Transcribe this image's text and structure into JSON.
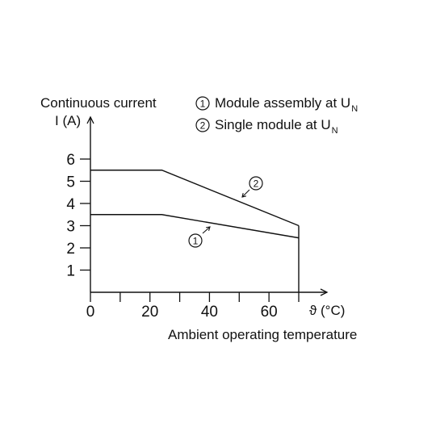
{
  "chart_data": {
    "type": "line",
    "ylabel_line1": "Continuous current",
    "ylabel_line2": "I (A)",
    "xlabel": "Ambient operating temperature",
    "x_axis_symbol": "ϑ (°C)",
    "xlim": [
      0,
      70
    ],
    "ylim": [
      0,
      6
    ],
    "x_ticks": [
      0,
      20,
      40,
      60
    ],
    "y_ticks": [
      1,
      2,
      3,
      4,
      5,
      6
    ],
    "x_minor_ticks": [
      10,
      30,
      50,
      70
    ],
    "legend": [
      {
        "marker": "1",
        "text": "Module assembly at U",
        "subscript": "N"
      },
      {
        "marker": "2",
        "text": "Single module at U",
        "subscript": "N"
      }
    ],
    "series": [
      {
        "marker": "1",
        "x": [
          0,
          24,
          70
        ],
        "y": [
          3.5,
          3.5,
          2.45
        ]
      },
      {
        "marker": "2",
        "x": [
          0,
          24,
          70
        ],
        "y": [
          5.5,
          5.5,
          3.0
        ]
      }
    ],
    "vertical_drop": {
      "x": 70,
      "y_from": 3.0,
      "y_to": 0
    },
    "grid": false,
    "legend_position": "top-right",
    "line_color": "#111111"
  }
}
